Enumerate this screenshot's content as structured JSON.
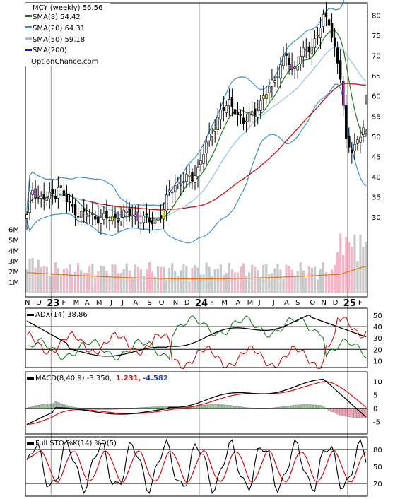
{
  "colors": {
    "sma8": "#1f7a1f",
    "sma20": "#3a8fd6",
    "sma50": "#8fc1ea",
    "sma200": "#1111cc",
    "red": "#cc1111",
    "orange": "#e07a20",
    "yellow": "#e8e020",
    "pink": "#f2b6c6",
    "grey": "#c8c8c8",
    "adx": "#000000",
    "pdi": "#1f7a1f",
    "mdi": "#cc1111"
  },
  "legend": {
    "title": "MCY (weekly) 56.56",
    "sma8": "SMA(8) 54.42",
    "sma20": "SMA(20) 64.31",
    "sma50": "SMA(50) 59.18",
    "sma200": "SMA(200)",
    "source": "OptionChance.com"
  },
  "x_labels": [
    {
      "t": "N",
      "big": false,
      "i": 0
    },
    {
      "t": "D",
      "big": false,
      "i": 4
    },
    {
      "t": "23",
      "big": true,
      "i": 9
    },
    {
      "t": "F",
      "big": false,
      "i": 13
    },
    {
      "t": "M",
      "big": false,
      "i": 17
    },
    {
      "t": "A",
      "big": false,
      "i": 21
    },
    {
      "t": "M",
      "big": false,
      "i": 25
    },
    {
      "t": "J",
      "big": false,
      "i": 30
    },
    {
      "t": "J",
      "big": false,
      "i": 34
    },
    {
      "t": "A",
      "big": false,
      "i": 38
    },
    {
      "t": "S",
      "big": false,
      "i": 43
    },
    {
      "t": "O",
      "big": false,
      "i": 47
    },
    {
      "t": "N",
      "big": false,
      "i": 52
    },
    {
      "t": "D",
      "big": false,
      "i": 56
    },
    {
      "t": "24",
      "big": true,
      "i": 61
    },
    {
      "t": "F",
      "big": false,
      "i": 65
    },
    {
      "t": "M",
      "big": false,
      "i": 69
    },
    {
      "t": "A",
      "big": false,
      "i": 74
    },
    {
      "t": "M",
      "big": false,
      "i": 78
    },
    {
      "t": "J",
      "big": false,
      "i": 82
    },
    {
      "t": "J",
      "big": false,
      "i": 87
    },
    {
      "t": "A",
      "big": false,
      "i": 91
    },
    {
      "t": "S",
      "big": false,
      "i": 95
    },
    {
      "t": "O",
      "big": false,
      "i": 100
    },
    {
      "t": "N",
      "big": false,
      "i": 104
    },
    {
      "t": "D",
      "big": false,
      "i": 108
    },
    {
      "t": "25",
      "big": true,
      "i": 113
    },
    {
      "t": "F",
      "big": false,
      "i": 117
    }
  ],
  "chart_data": [
    {
      "type": "candlestick",
      "title": "MCY (weekly) 56.56",
      "ylim": [
        26,
        82
      ],
      "y_ticks": [
        "30",
        "35",
        "40",
        "45",
        "50",
        "55",
        "60",
        "65",
        "70",
        "75",
        "80"
      ],
      "sma8_last": 54.42,
      "sma20_last": 64.31,
      "sma50_last": 59.18,
      "volume": {
        "ylim": [
          0,
          6.3
        ],
        "y_ticks": [
          "1M",
          "2M",
          "3M",
          "4M",
          "5M",
          "6M"
        ]
      }
    },
    {
      "type": "line",
      "title": "ADX(14) 38.86",
      "ylim": [
        4,
        55
      ],
      "y_ticks": [
        "10",
        "20",
        "30",
        "40",
        "50"
      ],
      "ref_lines": [
        20,
        40
      ],
      "adx_last": 38.86
    },
    {
      "type": "line",
      "title": "MACD(8,40,9) -3.350,",
      "signal_label": "1.231,",
      "hist_label": "-4.582",
      "ylim": [
        -9,
        13
      ],
      "y_ticks": [
        "-5",
        "0",
        "5",
        "10"
      ],
      "macd_last": -3.35,
      "signal_last": 1.231,
      "hist_last": -4.582
    },
    {
      "type": "line",
      "title": "Full STO %K(14) %D(5)",
      "ylim": [
        0,
        100
      ],
      "y_ticks": [
        "20",
        "50",
        "80"
      ],
      "ref_lines": [
        20,
        80
      ]
    }
  ]
}
